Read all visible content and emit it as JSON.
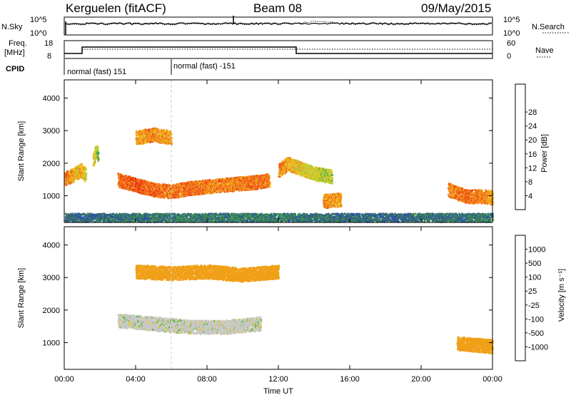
{
  "header": {
    "station": "Kerguelen (fitACF)",
    "beam": "Beam 08",
    "date": "09/May/2015"
  },
  "strip_panels": {
    "nsky_label": "N.Sky",
    "nsky_tick_top": "10^5",
    "nsky_tick_bottom": "10^0",
    "nsearch_label": "N.Search",
    "nsearch_tick_top": "10^5",
    "nsearch_tick_bottom": "10^0",
    "freq_label_1": "Freq.",
    "freq_label_2": "[MHz]",
    "freq_tick_top": "18",
    "freq_tick_bottom": "8",
    "nave_label": "Nave",
    "nave_tick_top": "60",
    "nave_tick_bottom": "0",
    "cpid_label": "CPID",
    "cpid_segments": [
      {
        "start_hour": 0,
        "text": "normal (fast) 151"
      },
      {
        "start_hour": 6,
        "text": "normal (fast) -151"
      }
    ]
  },
  "colors": {
    "power": [
      "#1414e0",
      "#2a50a8",
      "#3c7a5a",
      "#3aa24a",
      "#a8d23a",
      "#f0c020",
      "#f08c1e",
      "#f04a14",
      "#e8140e"
    ],
    "velocity": [
      "#2a3aa8",
      "#3c6ab0",
      "#2a8a58",
      "#5cb83a",
      "#c8c8c8",
      "#f0c830",
      "#f0a018",
      "#f06414",
      "#e8140e"
    ]
  },
  "chart_data": [
    {
      "type": "heatmap",
      "name": "power",
      "ylabel": "Slant Range [km]",
      "xlabel": "",
      "xlim": [
        0,
        24
      ],
      "ylim": [
        180,
        4560
      ],
      "yticks": [
        1000,
        2000,
        3000,
        4000
      ],
      "colorbar": {
        "label": "Power [dB]",
        "range": [
          0,
          32
        ],
        "tick_values": [
          4,
          8,
          12,
          16,
          20,
          24,
          28
        ],
        "tick_labels": [
          "4",
          "8",
          "12",
          "16",
          "20",
          "24",
          "28"
        ]
      },
      "series": [
        {
          "hours": [
            0.0,
            0.3,
            0.6,
            0.9,
            1.2
          ],
          "range_km": [
            1550,
            1600,
            1700,
            1800,
            1650
          ],
          "power_db": [
            28,
            26,
            22,
            24,
            20
          ]
        },
        {
          "hours": [
            1.6,
            1.7,
            1.8,
            1.9
          ],
          "range_km": [
            2100,
            2300,
            2400,
            2200
          ],
          "power_db": [
            22,
            20,
            18,
            14
          ]
        },
        {
          "hours": [
            3.0,
            4.0,
            5.0,
            6.0,
            7.0,
            8.0,
            9.0,
            10.0,
            11.0,
            11.5
          ],
          "range_km": [
            1500,
            1350,
            1200,
            1150,
            1250,
            1300,
            1350,
            1400,
            1450,
            1500
          ],
          "power_db": [
            28,
            29,
            28,
            27,
            28,
            27,
            26,
            27,
            28,
            26
          ]
        },
        {
          "hours": [
            4.0,
            5.0,
            6.0
          ],
          "range_km": [
            2800,
            2900,
            2800
          ],
          "power_db": [
            24,
            26,
            24
          ]
        },
        {
          "hours": [
            12.0,
            12.5,
            13.0,
            14.0,
            15.0
          ],
          "range_km": [
            1800,
            2000,
            1900,
            1700,
            1600
          ],
          "power_db": [
            26,
            24,
            22,
            20,
            18
          ]
        },
        {
          "hours": [
            14.5,
            15.5
          ],
          "range_km": [
            850,
            900
          ],
          "power_db": [
            26,
            24
          ]
        },
        {
          "hours": [
            21.5,
            22.5,
            23.5,
            24.0
          ],
          "range_km": [
            1200,
            1000,
            1000,
            950
          ],
          "power_db": [
            26,
            28,
            26,
            24
          ]
        },
        {
          "hours": [
            0.0,
            6.0,
            12.0,
            18.0,
            24.0
          ],
          "range_km": [
            350,
            350,
            350,
            350,
            350
          ],
          "power_db": [
            8,
            10,
            10,
            8,
            10
          ]
        }
      ]
    },
    {
      "type": "heatmap",
      "name": "velocity",
      "ylabel": "Slant Range [km]",
      "xlabel": "Time UT",
      "xlim": [
        0,
        24
      ],
      "ylim": [
        180,
        4560
      ],
      "yticks": [
        1000,
        2000,
        3000,
        4000
      ],
      "xticks": [
        0,
        4,
        8,
        12,
        16,
        20,
        24
      ],
      "xtick_labels": [
        "00:00",
        "04:00",
        "08:00",
        "12:00",
        "16:00",
        "20:00",
        "00:00"
      ],
      "colorbar": {
        "label": "Velocity [m s⁻¹]",
        "tick_labels": [
          "1000",
          "500",
          "100",
          "25",
          "-25",
          "-100",
          "-500",
          "-1000"
        ]
      },
      "series": [
        {
          "hours": [
            3.0,
            5.0,
            7.0,
            9.0,
            11.0
          ],
          "range_km": [
            1700,
            1600,
            1500,
            1500,
            1600
          ],
          "velocity_ms": [
            0,
            0,
            0,
            0,
            0
          ]
        },
        {
          "hours": [
            4.0,
            6.0,
            8.0,
            10.0,
            12.0
          ],
          "range_km": [
            3200,
            3150,
            3200,
            3100,
            3200
          ],
          "velocity_ms": [
            -300,
            -400,
            -300,
            -250,
            -300
          ]
        },
        {
          "hours": [
            22.0,
            23.0,
            24.0
          ],
          "range_km": [
            1000,
            950,
            900
          ],
          "velocity_ms": [
            -150,
            -200,
            -120
          ]
        }
      ]
    }
  ]
}
